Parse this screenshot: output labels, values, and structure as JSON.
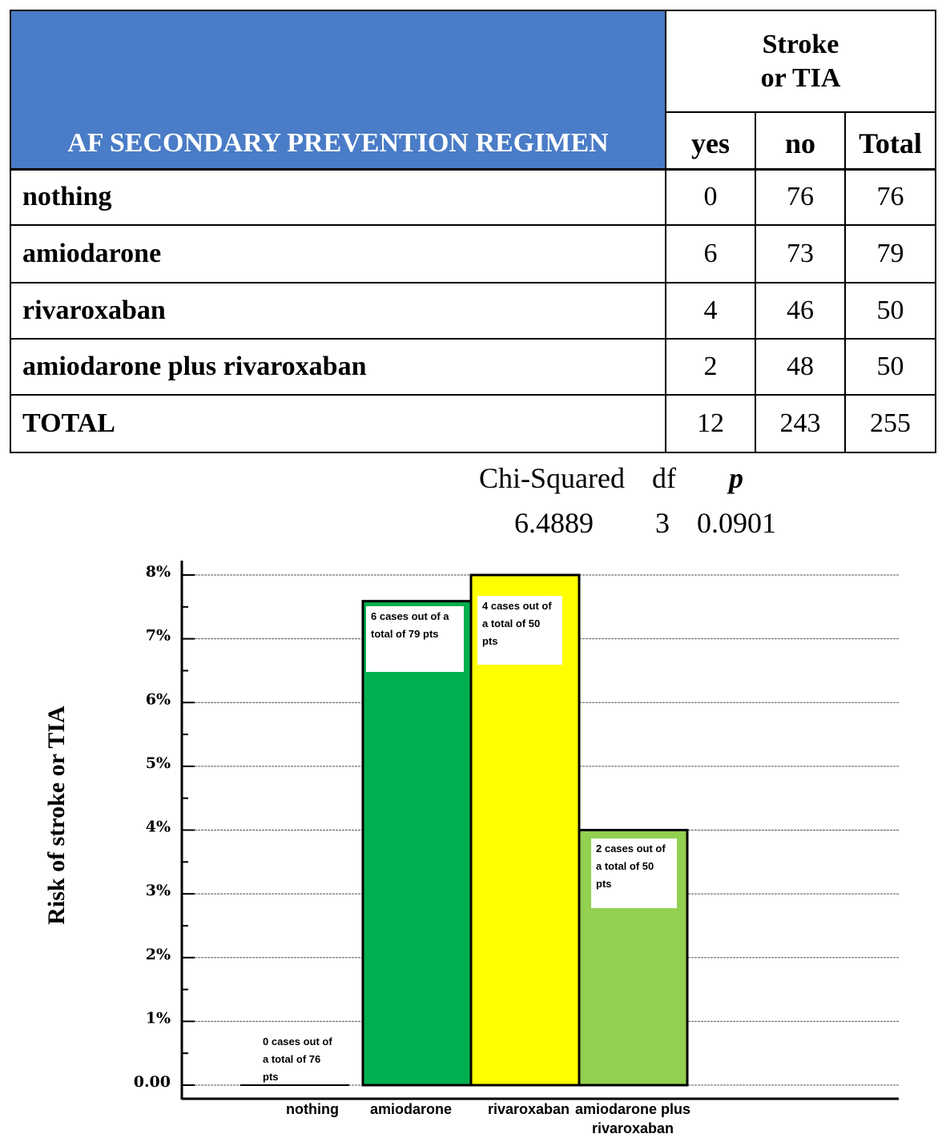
{
  "table": {
    "header_regimen": "AF SECONDARY PREVENTION REGIMEN",
    "header_group_line1": "Stroke",
    "header_group_line2": "or TIA",
    "col_yes": "yes",
    "col_no": "no",
    "col_total": "Total",
    "rows": [
      {
        "label": "nothing",
        "yes": "0",
        "no": "76",
        "total": "76"
      },
      {
        "label": "amiodarone",
        "yes": "6",
        "no": "73",
        "total": "79"
      },
      {
        "label": "rivaroxaban",
        "yes": "4",
        "no": "46",
        "total": "50"
      },
      {
        "label": "amiodarone plus rivaroxaban",
        "yes": "2",
        "no": "48",
        "total": "50"
      },
      {
        "label": "TOTAL",
        "yes": "12",
        "no": "243",
        "total": "255"
      }
    ]
  },
  "stats": {
    "chi_label": "Chi-Squared",
    "df_label": "df",
    "p_label": "p",
    "chi_value": "6.4889",
    "df_value": "3",
    "p_value": "0.0901"
  },
  "chart_data": {
    "type": "bar",
    "ylabel": "Risk of stroke or TIA",
    "ylim": [
      0,
      8
    ],
    "y_ticks": [
      {
        "value": 0,
        "label": "0.00"
      },
      {
        "value": 1,
        "label": "1%"
      },
      {
        "value": 2,
        "label": "2%"
      },
      {
        "value": 3,
        "label": "3%"
      },
      {
        "value": 4,
        "label": "4%"
      },
      {
        "value": 5,
        "label": "5%"
      },
      {
        "value": 6,
        "label": "6%"
      },
      {
        "value": 7,
        "label": "7%"
      },
      {
        "value": 8,
        "label": "8%"
      }
    ],
    "grid": true,
    "categories": [
      "nothing",
      "amiodarone",
      "rivaroxaban",
      "amiodarone plus rivaroxaban"
    ],
    "category_labels": [
      [
        "nothing"
      ],
      [
        "amiodarone"
      ],
      [
        "rivaroxaban"
      ],
      [
        "amiodarone plus",
        "rivaroxaban"
      ]
    ],
    "values": [
      0,
      7.59,
      8.0,
      4.0
    ],
    "colors": [
      "#ffffff",
      "#00b050",
      "#ffff00",
      "#92d050"
    ],
    "annotations": [
      [
        "0  cases out of",
        "a total of 76",
        "pts"
      ],
      [
        "6  cases out of a",
        "total of 79  pts"
      ],
      [
        "4  cases out of",
        "a total of 50",
        "pts"
      ],
      [
        "2  cases out of",
        "a total of 50",
        "pts"
      ]
    ]
  }
}
